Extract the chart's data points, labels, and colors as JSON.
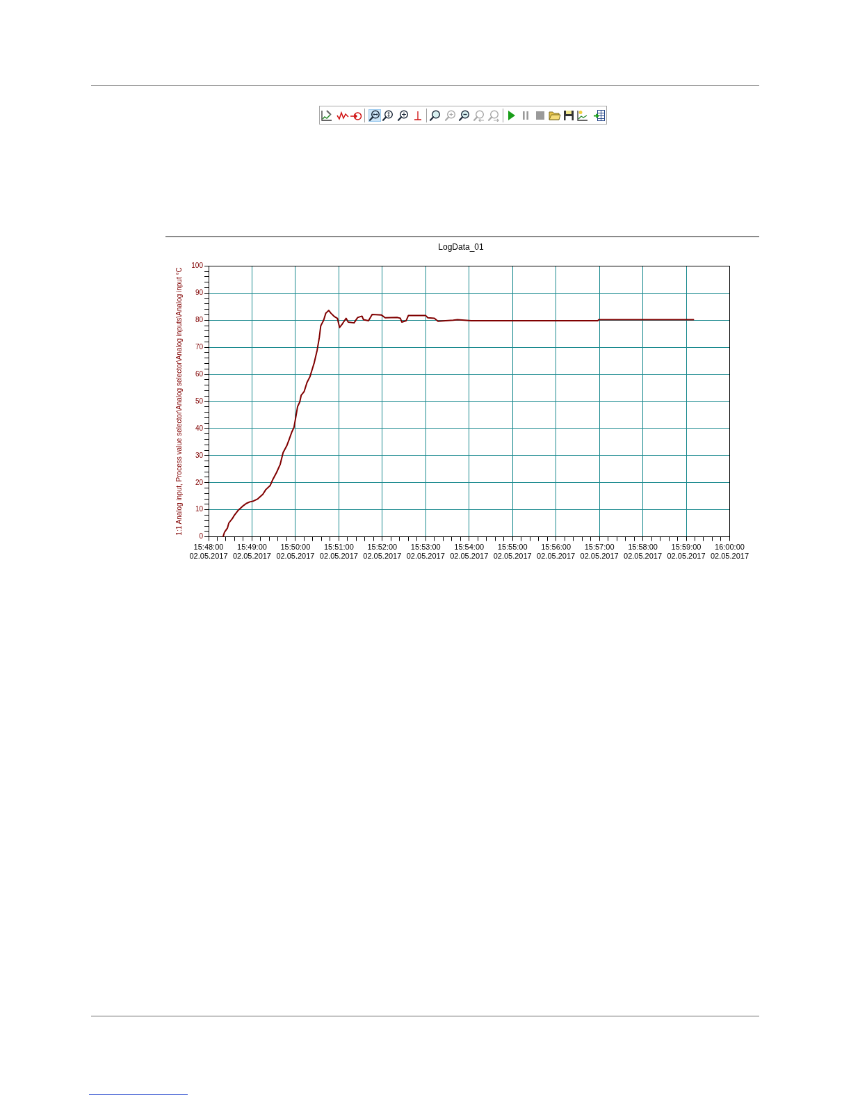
{
  "chart_data": {
    "type": "line",
    "title": "LogData_01",
    "ylabel": "1:1 Analog input, Process value selector\\Analog selector\\Analog inputs\\Analog input °C",
    "x": [
      "2017-05-02T15:48:20",
      "2017-05-02T15:48:22",
      "2017-05-02T15:48:26",
      "2017-05-02T15:48:28",
      "2017-05-02T15:48:33",
      "2017-05-02T15:48:36",
      "2017-05-02T15:48:41",
      "2017-05-02T15:48:48",
      "2017-05-02T15:48:52",
      "2017-05-02T15:48:57",
      "2017-05-02T15:49:02",
      "2017-05-02T15:49:08",
      "2017-05-02T15:49:15",
      "2017-05-02T15:49:19",
      "2017-05-02T15:49:25",
      "2017-05-02T15:49:29",
      "2017-05-02T15:49:34",
      "2017-05-02T15:49:39",
      "2017-05-02T15:49:43",
      "2017-05-02T15:49:48",
      "2017-05-02T15:49:51",
      "2017-05-02T15:49:55",
      "2017-05-02T15:49:58",
      "2017-05-02T15:50:00",
      "2017-05-02T15:50:03",
      "2017-05-02T15:50:06",
      "2017-05-02T15:50:08",
      "2017-05-02T15:50:12",
      "2017-05-02T15:50:16",
      "2017-05-02T15:50:20",
      "2017-05-02T15:50:23",
      "2017-05-02T15:50:26",
      "2017-05-02T15:50:30",
      "2017-05-02T15:50:33",
      "2017-05-02T15:50:35",
      "2017-05-02T15:50:39",
      "2017-05-02T15:50:42",
      "2017-05-02T15:50:46",
      "2017-05-02T15:50:49",
      "2017-05-02T15:50:54",
      "2017-05-02T15:50:58",
      "2017-05-02T15:51:01",
      "2017-05-02T15:51:05",
      "2017-05-02T15:51:10",
      "2017-05-02T15:51:13",
      "2017-05-02T15:51:21",
      "2017-05-02T15:51:26",
      "2017-05-02T15:51:32",
      "2017-05-02T15:51:34",
      "2017-05-02T15:51:41",
      "2017-05-02T15:51:46",
      "2017-05-02T15:51:59",
      "2017-05-02T15:52:04",
      "2017-05-02T15:52:21",
      "2017-05-02T15:52:25",
      "2017-05-02T15:52:27",
      "2017-05-02T15:52:33",
      "2017-05-02T15:52:36",
      "2017-05-02T15:53:00",
      "2017-05-02T15:53:03",
      "2017-05-02T15:53:12",
      "2017-05-02T15:53:17",
      "2017-05-02T15:53:38",
      "2017-05-02T15:53:44",
      "2017-05-02T15:54:03",
      "2017-05-02T15:56:58",
      "2017-05-02T15:56:59",
      "2017-05-02T15:59:10"
    ],
    "series": [
      {
        "color": "#800000",
        "values": [
          0,
          1.7,
          3.2,
          5.1,
          6.8,
          8.1,
          9.8,
          11.5,
          12.3,
          12.9,
          13.2,
          14,
          15.7,
          17.4,
          18.9,
          21.3,
          23.8,
          26.8,
          31.1,
          33.6,
          35.7,
          38.7,
          40.4,
          43.4,
          48.1,
          49.8,
          52.3,
          53.6,
          57,
          59.1,
          61.7,
          64.3,
          68.9,
          73.6,
          77.9,
          80,
          82.6,
          83.6,
          82.6,
          81.3,
          80.7,
          77.3,
          78.7,
          80.7,
          79.3,
          79,
          81,
          81.5,
          80.2,
          79.8,
          82.1,
          81.9,
          80.9,
          81,
          80.7,
          79.3,
          79.8,
          81.7,
          81.7,
          80.9,
          80.7,
          79.6,
          80,
          80.2,
          79.8,
          79.8,
          80.2,
          80.2
        ]
      }
    ],
    "xlim": [
      "2017-05-02T15:48:00",
      "2017-05-02T16:00:00"
    ],
    "xticks": [
      {
        "value": "2017-05-02T15:48:00",
        "label": "15:48:00\n02.05.2017"
      },
      {
        "value": "2017-05-02T15:48:12",
        "label": null
      },
      {
        "value": "2017-05-02T15:48:24",
        "label": null
      },
      {
        "value": "2017-05-02T15:48:36",
        "label": null
      },
      {
        "value": "2017-05-02T15:48:48",
        "label": null
      },
      {
        "value": "2017-05-02T15:49:00",
        "label": "15:49:00\n02.05.2017"
      },
      {
        "value": "2017-05-02T15:49:12",
        "label": null
      },
      {
        "value": "2017-05-02T15:49:24",
        "label": null
      },
      {
        "value": "2017-05-02T15:49:36",
        "label": null
      },
      {
        "value": "2017-05-02T15:49:48",
        "label": null
      },
      {
        "value": "2017-05-02T15:50:00",
        "label": "15:50:00\n02.05.2017"
      },
      {
        "value": "2017-05-02T15:50:12",
        "label": null
      },
      {
        "value": "2017-05-02T15:50:24",
        "label": null
      },
      {
        "value": "2017-05-02T15:50:36",
        "label": null
      },
      {
        "value": "2017-05-02T15:50:48",
        "label": null
      },
      {
        "value": "2017-05-02T15:51:00",
        "label": "15:51:00\n02.05.2017"
      },
      {
        "value": "2017-05-02T15:51:12",
        "label": null
      },
      {
        "value": "2017-05-02T15:51:24",
        "label": null
      },
      {
        "value": "2017-05-02T15:51:36",
        "label": null
      },
      {
        "value": "2017-05-02T15:51:48",
        "label": null
      },
      {
        "value": "2017-05-02T15:52:00",
        "label": "15:52:00\n02.05.2017"
      },
      {
        "value": "2017-05-02T15:52:12",
        "label": null
      },
      {
        "value": "2017-05-02T15:52:24",
        "label": null
      },
      {
        "value": "2017-05-02T15:52:36",
        "label": null
      },
      {
        "value": "2017-05-02T15:52:48",
        "label": null
      },
      {
        "value": "2017-05-02T15:53:00",
        "label": "15:53:00\n02.05.2017"
      },
      {
        "value": "2017-05-02T15:53:12",
        "label": null
      },
      {
        "value": "2017-05-02T15:53:24",
        "label": null
      },
      {
        "value": "2017-05-02T15:53:36",
        "label": null
      },
      {
        "value": "2017-05-02T15:53:48",
        "label": null
      },
      {
        "value": "2017-05-02T15:54:00",
        "label": "15:54:00\n02.05.2017"
      },
      {
        "value": "2017-05-02T15:54:12",
        "label": null
      },
      {
        "value": "2017-05-02T15:54:24",
        "label": null
      },
      {
        "value": "2017-05-02T15:54:36",
        "label": null
      },
      {
        "value": "2017-05-02T15:54:48",
        "label": null
      },
      {
        "value": "2017-05-02T15:55:00",
        "label": "15:55:00\n02.05.2017"
      },
      {
        "value": "2017-05-02T15:55:12",
        "label": null
      },
      {
        "value": "2017-05-02T15:55:24",
        "label": null
      },
      {
        "value": "2017-05-02T15:55:36",
        "label": null
      },
      {
        "value": "2017-05-02T15:55:48",
        "label": null
      },
      {
        "value": "2017-05-02T15:56:00",
        "label": "15:56:00\n02.05.2017"
      },
      {
        "value": "2017-05-02T15:56:12",
        "label": null
      },
      {
        "value": "2017-05-02T15:56:24",
        "label": null
      },
      {
        "value": "2017-05-02T15:56:36",
        "label": null
      },
      {
        "value": "2017-05-02T15:56:48",
        "label": null
      },
      {
        "value": "2017-05-02T15:57:00",
        "label": "15:57:00\n02.05.2017"
      },
      {
        "value": "2017-05-02T15:57:12",
        "label": null
      },
      {
        "value": "2017-05-02T15:57:24",
        "label": null
      },
      {
        "value": "2017-05-02T15:57:36",
        "label": null
      },
      {
        "value": "2017-05-02T15:57:48",
        "label": null
      },
      {
        "value": "2017-05-02T15:58:00",
        "label": "15:58:00\n02.05.2017"
      },
      {
        "value": "2017-05-02T15:58:12",
        "label": null
      },
      {
        "value": "2017-05-02T15:58:24",
        "label": null
      },
      {
        "value": "2017-05-02T15:58:36",
        "label": null
      },
      {
        "value": "2017-05-02T15:58:48",
        "label": null
      },
      {
        "value": "2017-05-02T15:59:00",
        "label": "15:59:00\n02.05.2017"
      },
      {
        "value": "2017-05-02T15:59:12",
        "label": null
      },
      {
        "value": "2017-05-02T15:59:24",
        "label": null
      },
      {
        "value": "2017-05-02T15:59:36",
        "label": null
      },
      {
        "value": "2017-05-02T15:59:48",
        "label": null
      },
      {
        "value": "2017-05-02T16:00:00",
        "label": "16:00:00\n02.05.2017"
      }
    ],
    "ylim": [
      0,
      100
    ],
    "yticks": [
      0,
      {
        "value": 2,
        "label": null
      },
      {
        "value": 4,
        "label": null
      },
      {
        "value": 6,
        "label": null
      },
      {
        "value": 8,
        "label": null
      },
      10,
      {
        "value": 12,
        "label": null
      },
      {
        "value": 14,
        "label": null
      },
      {
        "value": 16,
        "label": null
      },
      {
        "value": 18,
        "label": null
      },
      20,
      {
        "value": 22,
        "label": null
      },
      {
        "value": 24,
        "label": null
      },
      {
        "value": 26,
        "label": null
      },
      {
        "value": 28,
        "label": null
      },
      30,
      {
        "value": 32,
        "label": null
      },
      {
        "value": 34,
        "label": null
      },
      {
        "value": 36,
        "label": null
      },
      {
        "value": 38,
        "label": null
      },
      40,
      {
        "value": 42,
        "label": null
      },
      {
        "value": 44,
        "label": null
      },
      {
        "value": 46,
        "label": null
      },
      {
        "value": 48,
        "label": null
      },
      50,
      {
        "value": 52,
        "label": null
      },
      {
        "value": 54,
        "label": null
      },
      {
        "value": 56,
        "label": null
      },
      {
        "value": 58,
        "label": null
      },
      60,
      {
        "value": 62,
        "label": null
      },
      {
        "value": 64,
        "label": null
      },
      {
        "value": 66,
        "label": null
      },
      {
        "value": 68,
        "label": null
      },
      70,
      {
        "value": 72,
        "label": null
      },
      {
        "value": 74,
        "label": null
      },
      {
        "value": 76,
        "label": null
      },
      {
        "value": 78,
        "label": null
      },
      80,
      {
        "value": 82,
        "label": null
      },
      {
        "value": 84,
        "label": null
      },
      {
        "value": 86,
        "label": null
      },
      {
        "value": 88,
        "label": null
      },
      90,
      {
        "value": 92,
        "label": null
      },
      {
        "value": 94,
        "label": null
      },
      {
        "value": 96,
        "label": null
      },
      {
        "value": 98,
        "label": null
      },
      100
    ],
    "grid": true,
    "legend": false
  }
}
